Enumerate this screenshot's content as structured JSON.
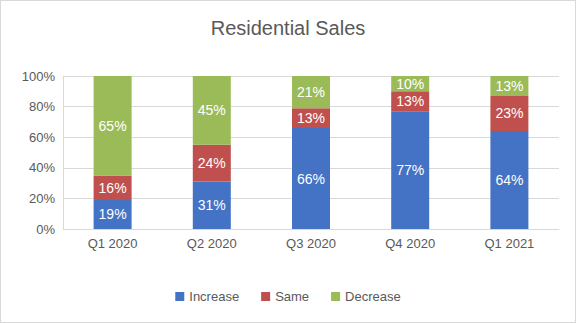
{
  "chart_data": {
    "type": "bar",
    "title": "Residential Sales",
    "categories": [
      "Q1 2020",
      "Q2 2020",
      "Q3 2020",
      "Q4 2020",
      "Q1 2021"
    ],
    "series": [
      {
        "name": "Increase",
        "color": "#4472c4",
        "values": [
          19,
          31,
          66,
          77,
          64
        ],
        "value_labels": [
          "19%",
          "31%",
          "66%",
          "77%",
          "64%"
        ]
      },
      {
        "name": "Same",
        "color": "#c0504d",
        "values": [
          16,
          24,
          13,
          13,
          23
        ],
        "value_labels": [
          "16%",
          "24%",
          "13%",
          "13%",
          "23%"
        ]
      },
      {
        "name": "Decrease",
        "color": "#9bbb59",
        "values": [
          65,
          45,
          21,
          10,
          13
        ],
        "value_labels": [
          "65%",
          "45%",
          "21%",
          "10%",
          "13%"
        ]
      }
    ],
    "ylim": [
      0,
      100
    ],
    "yticks": [
      {
        "value": 0,
        "label": "0%"
      },
      {
        "value": 20,
        "label": "20%"
      },
      {
        "value": 40,
        "label": "40%"
      },
      {
        "value": 60,
        "label": "60%"
      },
      {
        "value": 80,
        "label": "80%"
      },
      {
        "value": 100,
        "label": "100%"
      }
    ],
    "stacked": true,
    "data_labels": true,
    "grid": true,
    "legend": "bottom"
  }
}
